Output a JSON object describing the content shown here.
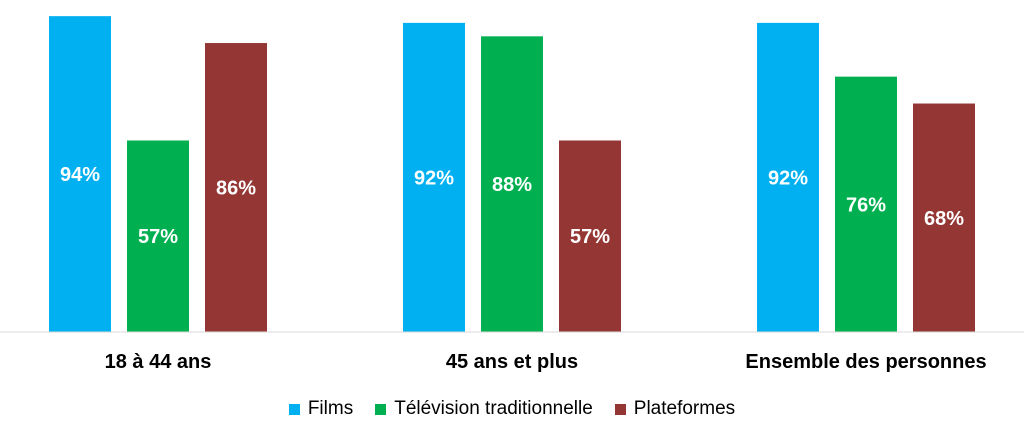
{
  "chart_data": {
    "type": "bar",
    "title": "",
    "xlabel": "",
    "ylabel": "",
    "ylim": [
      0,
      100
    ],
    "grid": false,
    "legend_position": "bottom",
    "categories": [
      "18 à 44 ans",
      "45 ans et plus",
      "Ensemble des personnes"
    ],
    "series": [
      {
        "name": "Films",
        "color": "#00B0F0",
        "values": [
          94,
          92,
          92
        ],
        "labels": [
          "94%",
          "92%",
          "92%"
        ]
      },
      {
        "name": "Télévision traditionnelle",
        "color": "#00B050",
        "values": [
          57,
          88,
          76
        ],
        "labels": [
          "57%",
          "88%",
          "76%"
        ]
      },
      {
        "name": "Plateformes",
        "color": "#943634",
        "values": [
          86,
          57,
          68
        ],
        "labels": [
          "86%",
          "57%",
          "68%"
        ]
      }
    ]
  }
}
